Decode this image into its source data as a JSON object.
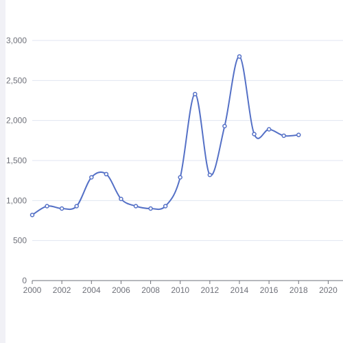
{
  "chart_data": {
    "type": "line",
    "title": "",
    "xlabel": "",
    "ylabel": "",
    "smooth": true,
    "grid": "horizontal",
    "legend": "none",
    "xlim": [
      2000,
      2021
    ],
    "ylim": [
      0,
      3000
    ],
    "x_ticks": [
      2000,
      2002,
      2004,
      2006,
      2008,
      2010,
      2012,
      2014,
      2016,
      2018,
      2020
    ],
    "x_tick_labels": [
      "2000",
      "2002",
      "2004",
      "2006",
      "2008",
      "2010",
      "2012",
      "2014",
      "2016",
      "2018",
      "2020"
    ],
    "y_ticks": [
      0,
      500,
      1000,
      1500,
      2000,
      2500,
      3000
    ],
    "y_tick_labels": [
      "0",
      "500",
      "1,000",
      "1,500",
      "2,000",
      "2,500",
      "3,000"
    ],
    "series": [
      {
        "color": "#5470c6",
        "points": [
          {
            "x": 2000.0,
            "y": 820
          },
          {
            "x": 2001.0,
            "y": 930
          },
          {
            "x": 2002.0,
            "y": 900
          },
          {
            "x": 2003.0,
            "y": 930
          },
          {
            "x": 2004.0,
            "y": 1290
          },
          {
            "x": 2005.0,
            "y": 1330
          },
          {
            "x": 2006.0,
            "y": 1020
          },
          {
            "x": 2007.0,
            "y": 930
          },
          {
            "x": 2008.0,
            "y": 900
          },
          {
            "x": 2009.0,
            "y": 930
          },
          {
            "x": 2010.0,
            "y": 1290
          },
          {
            "x": 2011.0,
            "y": 2330
          },
          {
            "x": 2012.0,
            "y": 1320
          },
          {
            "x": 2013.0,
            "y": 1930
          },
          {
            "x": 2014.0,
            "y": 2800
          },
          {
            "x": 2015.0,
            "y": 1830
          },
          {
            "x": 2016.0,
            "y": 1890
          },
          {
            "x": 2017.0,
            "y": 1810
          },
          {
            "x": 2018.0,
            "y": 1820
          }
        ]
      }
    ]
  }
}
